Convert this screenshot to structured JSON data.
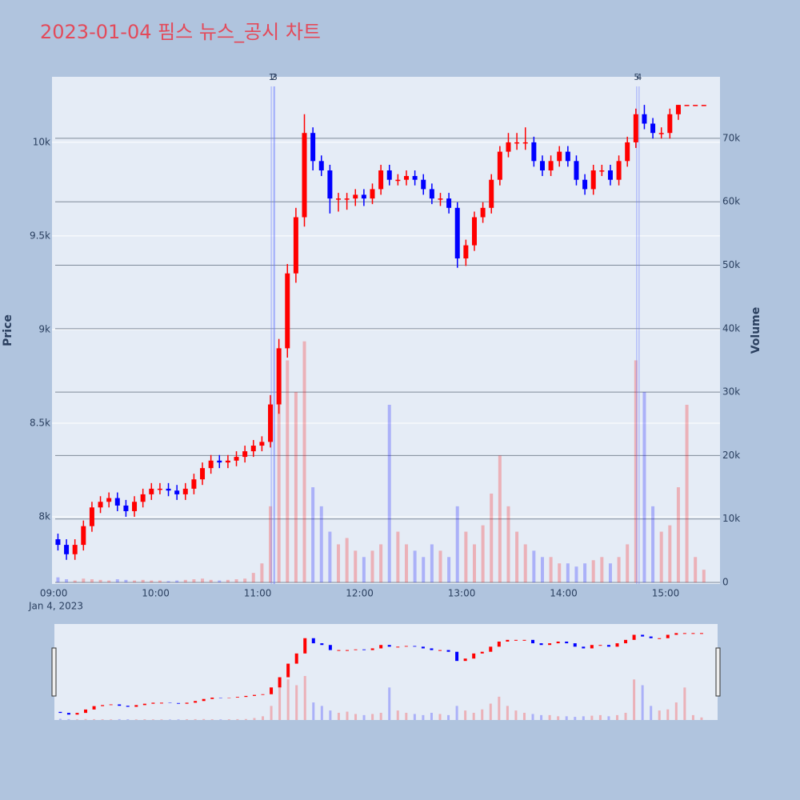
{
  "chart_data": {
    "type": "candlestick",
    "title": "2023-01-04 핌스 뉴스_공시 차트",
    "title_color": "#e34a5a",
    "ylabel": "Price",
    "y2label": "Volume",
    "x_date_label": "Jan 4, 2023",
    "increasing_color": "#ff0000",
    "decreasing_color": "#0000ff",
    "x": [
      "09:00",
      "09:05",
      "09:10",
      "09:15",
      "09:20",
      "09:25",
      "09:30",
      "09:35",
      "09:40",
      "09:45",
      "09:50",
      "09:55",
      "10:00",
      "10:05",
      "10:10",
      "10:15",
      "10:20",
      "10:25",
      "10:30",
      "10:35",
      "10:40",
      "10:45",
      "10:50",
      "10:55",
      "11:00",
      "11:05",
      "11:10",
      "11:15",
      "11:20",
      "11:25",
      "11:30",
      "11:35",
      "11:40",
      "11:45",
      "11:50",
      "11:55",
      "12:00",
      "12:05",
      "12:10",
      "12:15",
      "12:20",
      "12:25",
      "12:30",
      "12:35",
      "12:40",
      "12:45",
      "12:50",
      "12:55",
      "13:00",
      "13:05",
      "13:10",
      "13:15",
      "13:20",
      "13:25",
      "13:30",
      "13:35",
      "13:40",
      "13:45",
      "13:50",
      "13:55",
      "14:00",
      "14:05",
      "14:10",
      "14:15",
      "14:20",
      "14:25",
      "14:30",
      "14:35",
      "14:40",
      "14:45",
      "14:50",
      "14:55",
      "15:00",
      "15:05",
      "15:10",
      "15:15",
      "15:20"
    ],
    "open": [
      7880,
      7850,
      7800,
      7850,
      7950,
      8050,
      8080,
      8100,
      8060,
      8030,
      8080,
      8120,
      8150,
      8150,
      8140,
      8120,
      8150,
      8200,
      8260,
      8300,
      8290,
      8300,
      8320,
      8350,
      8380,
      8400,
      8600,
      8900,
      9300,
      9600,
      10050,
      9900,
      9850,
      9700,
      9700,
      9700,
      9720,
      9700,
      9750,
      9850,
      9800,
      9800,
      9820,
      9800,
      9750,
      9700,
      9700,
      9650,
      9380,
      9450,
      9600,
      9650,
      9800,
      9950,
      10000,
      10000,
      10000,
      9900,
      9850,
      9900,
      9950,
      9900,
      9800,
      9750,
      9850,
      9850,
      9800,
      9900,
      10000,
      10150,
      10100,
      10050,
      10050,
      10150,
      10200,
      10200,
      10200
    ],
    "high": [
      7910,
      7880,
      7880,
      7980,
      8080,
      8110,
      8130,
      8130,
      8090,
      8110,
      8150,
      8180,
      8180,
      8180,
      8170,
      8180,
      8230,
      8290,
      8330,
      8330,
      8330,
      8350,
      8380,
      8410,
      8430,
      8650,
      8950,
      9350,
      9650,
      10150,
      10080,
      9930,
      9880,
      9730,
      9730,
      9750,
      9750,
      9780,
      9880,
      9880,
      9830,
      9850,
      9850,
      9830,
      9780,
      9730,
      9730,
      9680,
      9480,
      9630,
      9680,
      9830,
      9980,
      10050,
      10050,
      10080,
      10030,
      9930,
      9930,
      9980,
      9980,
      9930,
      9830,
      9880,
      9880,
      9880,
      9930,
      10030,
      10180,
      10200,
      10130,
      10080,
      10180,
      10200,
      10200,
      10200,
      10200
    ],
    "low": [
      7820,
      7770,
      7770,
      7820,
      7920,
      8020,
      8050,
      8030,
      8000,
      8000,
      8050,
      8090,
      8120,
      8110,
      8090,
      8090,
      8120,
      8170,
      8230,
      8260,
      8260,
      8270,
      8290,
      8320,
      8350,
      8370,
      8550,
      8850,
      9250,
      9550,
      9850,
      9820,
      9620,
      9630,
      9640,
      9660,
      9660,
      9670,
      9720,
      9770,
      9770,
      9770,
      9770,
      9720,
      9670,
      9660,
      9620,
      9330,
      9340,
      9420,
      9570,
      9620,
      9770,
      9920,
      9960,
      9960,
      9870,
      9820,
      9820,
      9870,
      9870,
      9770,
      9720,
      9720,
      9820,
      9770,
      9770,
      9870,
      9970,
      10070,
      10020,
      10020,
      10020,
      10120,
      10200,
      10200,
      10200
    ],
    "close": [
      7850,
      7800,
      7850,
      7950,
      8050,
      8080,
      8100,
      8060,
      8030,
      8080,
      8120,
      8150,
      8150,
      8140,
      8120,
      8150,
      8200,
      8260,
      8300,
      8290,
      8300,
      8320,
      8350,
      8380,
      8400,
      8600,
      8900,
      9300,
      9600,
      10050,
      9900,
      9850,
      9700,
      9700,
      9700,
      9720,
      9700,
      9750,
      9850,
      9800,
      9800,
      9820,
      9800,
      9750,
      9700,
      9700,
      9650,
      9380,
      9450,
      9600,
      9650,
      9800,
      9950,
      10000,
      10000,
      10000,
      9900,
      9850,
      9900,
      9950,
      9900,
      9800,
      9750,
      9850,
      9850,
      9800,
      9900,
      10000,
      10150,
      10100,
      10050,
      10050,
      10150,
      10200,
      10200,
      10200,
      10200
    ],
    "volume": [
      800,
      500,
      300,
      600,
      500,
      400,
      300,
      500,
      400,
      300,
      400,
      300,
      300,
      200,
      300,
      400,
      500,
      600,
      400,
      300,
      400,
      500,
      600,
      1500,
      3000,
      12000,
      28000,
      35000,
      30000,
      38000,
      15000,
      12000,
      8000,
      6000,
      7000,
      5000,
      4000,
      5000,
      6000,
      28000,
      8000,
      6000,
      5000,
      4000,
      6000,
      5000,
      4000,
      12000,
      8000,
      6000,
      9000,
      14000,
      20000,
      12000,
      8000,
      6000,
      5000,
      4000,
      4000,
      3000,
      3000,
      2500,
      3000,
      3500,
      4000,
      3000,
      4000,
      6000,
      35000,
      30000,
      12000,
      8000,
      9000,
      15000,
      28000,
      4000,
      2000
    ],
    "xlim": [
      "08:59",
      "15:32"
    ],
    "xticks": [
      "09:00",
      "10:00",
      "11:00",
      "12:00",
      "13:00",
      "14:00",
      "15:00"
    ],
    "ylim": [
      7641,
      10350
    ],
    "yticks": [
      {
        "value": 8000,
        "label": "8k"
      },
      {
        "value": 8500,
        "label": "8.5k"
      },
      {
        "value": 9000,
        "label": "9k"
      },
      {
        "value": 9500,
        "label": "9.5k"
      },
      {
        "value": 10000,
        "label": "10k"
      }
    ],
    "y2lim": [
      -250,
      79700
    ],
    "y2ticks": [
      0,
      {
        "value": 10000,
        "label": "10k"
      },
      {
        "value": 20000,
        "label": "20k"
      },
      {
        "value": 30000,
        "label": "30k"
      },
      {
        "value": 40000,
        "label": "40k"
      },
      {
        "value": 50000,
        "label": "50k"
      },
      {
        "value": 60000,
        "label": "60k"
      },
      {
        "value": 70000,
        "label": "70k"
      }
    ],
    "annotations": [
      {
        "x": "11:08",
        "text": "1"
      },
      {
        "x": "11:08",
        "text": "2"
      },
      {
        "x": "11:10",
        "text": "3"
      },
      {
        "x": "14:43",
        "text": "4"
      },
      {
        "x": "14:43",
        "text": "5"
      }
    ],
    "grid": true,
    "rangeslider": true
  }
}
